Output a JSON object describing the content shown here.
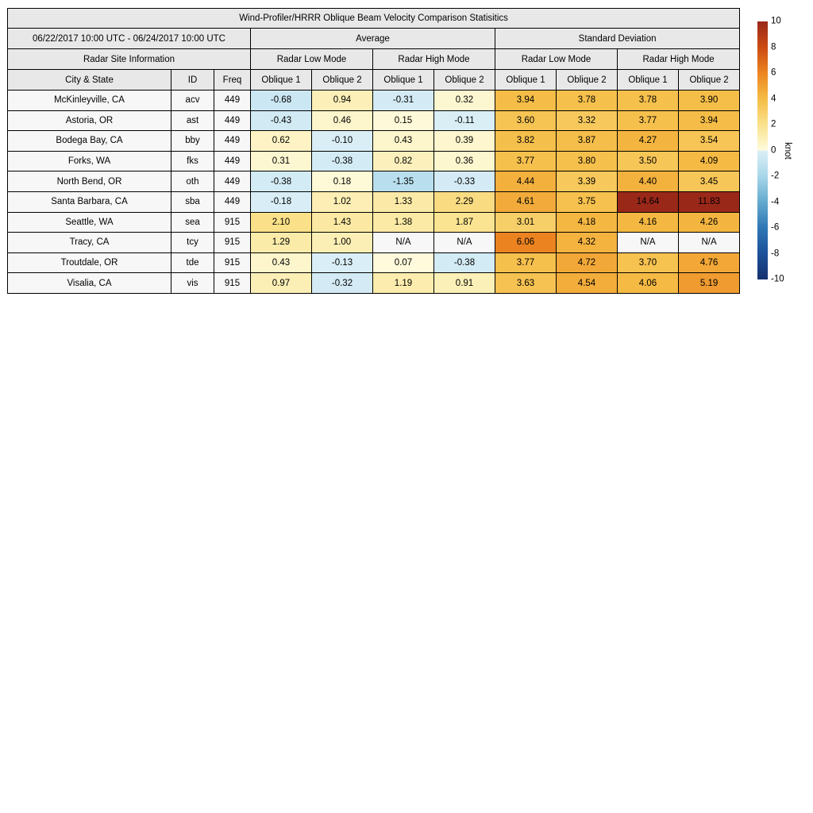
{
  "chart_data": {
    "type": "heatmap",
    "title": "Wind-Profiler/HRRR Oblique Beam Velocity Comparison Statisitics",
    "date_range": "06/22/2017 10:00 UTC - 06/24/2017 10:00 UTC",
    "group_headers": {
      "site": "Radar Site Information",
      "average": "Average",
      "stddev": "Standard Deviation"
    },
    "mode_headers": [
      "Radar Low Mode",
      "Radar High Mode",
      "Radar Low Mode",
      "Radar High Mode"
    ],
    "column_headers": [
      "City & State",
      "ID",
      "Freq",
      "Oblique 1",
      "Oblique 2",
      "Oblique 1",
      "Oblique 2",
      "Oblique 1",
      "Oblique 2",
      "Oblique 1",
      "Oblique 2"
    ],
    "na_label": "N/A",
    "rows": [
      {
        "city": "McKinleyville, CA",
        "id": "acv",
        "freq": "449",
        "values": [
          -0.68,
          0.94,
          -0.31,
          0.32,
          3.94,
          3.78,
          3.78,
          3.9
        ]
      },
      {
        "city": "Astoria, OR",
        "id": "ast",
        "freq": "449",
        "values": [
          -0.43,
          0.46,
          0.15,
          -0.11,
          3.6,
          3.32,
          3.77,
          3.94
        ]
      },
      {
        "city": "Bodega Bay, CA",
        "id": "bby",
        "freq": "449",
        "values": [
          0.62,
          -0.1,
          0.43,
          0.39,
          3.82,
          3.87,
          4.27,
          3.54
        ]
      },
      {
        "city": "Forks, WA",
        "id": "fks",
        "freq": "449",
        "values": [
          0.31,
          -0.38,
          0.82,
          0.36,
          3.77,
          3.8,
          3.5,
          4.09
        ]
      },
      {
        "city": "North Bend, OR",
        "id": "oth",
        "freq": "449",
        "values": [
          -0.38,
          0.18,
          -1.35,
          -0.33,
          4.44,
          3.39,
          4.4,
          3.45
        ]
      },
      {
        "city": "Santa Barbara, CA",
        "id": "sba",
        "freq": "449",
        "values": [
          -0.18,
          1.02,
          1.33,
          2.29,
          4.61,
          3.75,
          14.64,
          11.83
        ]
      },
      {
        "city": "Seattle, WA",
        "id": "sea",
        "freq": "915",
        "values": [
          2.1,
          1.43,
          1.38,
          1.87,
          3.01,
          4.18,
          4.16,
          4.26
        ]
      },
      {
        "city": "Tracy, CA",
        "id": "tcy",
        "freq": "915",
        "values": [
          1.29,
          1.0,
          null,
          null,
          6.06,
          4.32,
          null,
          null
        ]
      },
      {
        "city": "Troutdale, OR",
        "id": "tde",
        "freq": "915",
        "values": [
          0.43,
          -0.13,
          0.07,
          -0.38,
          3.77,
          4.72,
          3.7,
          4.76
        ]
      },
      {
        "city": "Visalia, CA",
        "id": "vis",
        "freq": "915",
        "values": [
          0.97,
          -0.32,
          1.19,
          0.91,
          3.63,
          4.54,
          4.06,
          5.19
        ]
      }
    ],
    "colorbar": {
      "label": "knot",
      "min": -10,
      "max": 10,
      "ticks": [
        10,
        8,
        6,
        4,
        2,
        0,
        -2,
        -4,
        -6,
        -8,
        -10
      ],
      "stops": [
        [
          -10,
          "#16316E"
        ],
        [
          -8,
          "#1C5199"
        ],
        [
          -6,
          "#2F77B5"
        ],
        [
          -4,
          "#64AACE"
        ],
        [
          -2,
          "#A8D7EA"
        ],
        [
          -0.02,
          "#DCEFF7"
        ],
        [
          0.02,
          "#FEFBDD"
        ],
        [
          2,
          "#FAE28C"
        ],
        [
          4,
          "#F5BC45"
        ],
        [
          6,
          "#EC8521"
        ],
        [
          8,
          "#CB4A13"
        ],
        [
          10,
          "#9A2819"
        ]
      ]
    }
  },
  "colors": {
    "header_bg": "#E8E8E8",
    "label_bg": "#F7F7F7",
    "na_bg": "#F7F7F7",
    "border": "#000000",
    "background": "#FFFFFF"
  }
}
